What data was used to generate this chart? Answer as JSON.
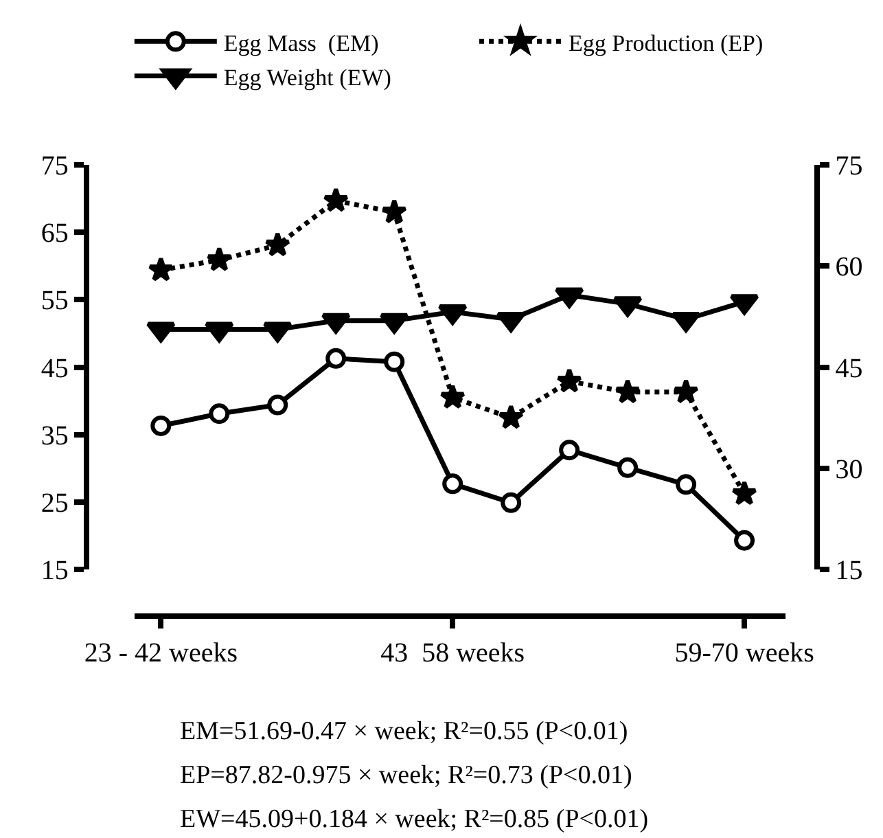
{
  "chart_data": {
    "type": "line",
    "categories": [
      "23 - 42 weeks",
      null,
      null,
      null,
      null,
      "43  58 weeks",
      null,
      null,
      null,
      null,
      "59-70 weeks"
    ],
    "ylim": [
      15,
      75
    ],
    "yticks": [
      15,
      25,
      35,
      45,
      55,
      65,
      75
    ],
    "y2lim": [
      15,
      75
    ],
    "y2ticks": [
      15,
      30,
      45,
      60,
      75
    ],
    "legend": "top",
    "series": [
      {
        "name": "Egg Mass  (EM)",
        "color": "#000000",
        "marker": "circle",
        "line_style": "solid",
        "values": [
          36.3,
          38.1,
          39.4,
          46.3,
          45.8,
          27.7,
          24.9,
          32.7,
          30.1,
          27.6,
          19.3
        ]
      },
      {
        "name": "Egg Production (EP)",
        "color": "#000000",
        "marker": "star",
        "line_style": "dotted",
        "axis": "y2",
        "values": [
          59.4,
          60.9,
          63.1,
          69.7,
          68.0,
          40.5,
          37.5,
          42.9,
          41.3,
          41.3,
          26.2
        ]
      },
      {
        "name": "Egg Weight (EW)",
        "color": "#000000",
        "marker": "triangle",
        "line_style": "solid",
        "values": [
          50.6,
          50.6,
          50.6,
          51.9,
          51.9,
          53.2,
          52.1,
          55.7,
          54.4,
          52.1,
          54.7
        ]
      }
    ],
    "annotations": [
      "EM=51.69-0.47 × week; R²=0.55 (P<0.01)",
      "EP=87.82-0.975 × week; R²=0.73 (P<0.01)",
      "EW=45.09+0.184 × week; R²=0.85 (P<0.01)"
    ]
  }
}
